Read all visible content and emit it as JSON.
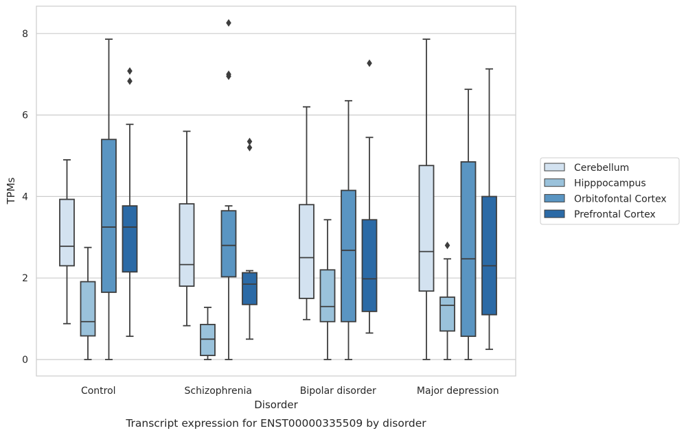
{
  "chart_data": {
    "type": "box",
    "xlabel": "Disorder",
    "ylabel": "TPMs",
    "caption": "Transcript expression for ENST00000335509 by disorder",
    "ylim": [
      -0.4,
      8.7
    ],
    "yticks": [
      0,
      2,
      4,
      6,
      8
    ],
    "grid": "horizontal",
    "legend_position": "right",
    "categories": [
      "Control",
      "Schizophrenia",
      "Bipolar disorder",
      "Major depression"
    ],
    "series": [
      {
        "name": "Cerebellum",
        "color": "#d3e2f0",
        "boxes": [
          {
            "whisker_low": 0.88,
            "q1": 2.3,
            "median": 2.78,
            "q3": 3.93,
            "whisker_high": 4.9,
            "outliers": []
          },
          {
            "whisker_low": 0.83,
            "q1": 1.8,
            "median": 2.33,
            "q3": 3.82,
            "whisker_high": 5.6,
            "outliers": []
          },
          {
            "whisker_low": 0.98,
            "q1": 1.5,
            "median": 2.5,
            "q3": 3.8,
            "whisker_high": 6.2,
            "outliers": []
          },
          {
            "whisker_low": 0.0,
            "q1": 1.68,
            "median": 2.65,
            "q3": 4.76,
            "whisker_high": 7.86,
            "outliers": []
          }
        ]
      },
      {
        "name": "Hipppocampus",
        "color": "#9ac2db",
        "boxes": [
          {
            "whisker_low": 0.0,
            "q1": 0.58,
            "median": 0.93,
            "q3": 1.91,
            "whisker_high": 2.75,
            "outliers": []
          },
          {
            "whisker_low": 0.0,
            "q1": 0.1,
            "median": 0.5,
            "q3": 0.86,
            "whisker_high": 1.28,
            "outliers": []
          },
          {
            "whisker_low": 0.0,
            "q1": 0.93,
            "median": 1.3,
            "q3": 2.2,
            "whisker_high": 3.43,
            "outliers": []
          },
          {
            "whisker_low": 0.0,
            "q1": 0.7,
            "median": 1.33,
            "q3": 1.53,
            "whisker_high": 2.47,
            "outliers": [
              2.8
            ]
          }
        ]
      },
      {
        "name": "Orbitofontal Cortex",
        "color": "#5a95c2",
        "boxes": [
          {
            "whisker_low": 0.0,
            "q1": 1.65,
            "median": 3.25,
            "q3": 5.4,
            "whisker_high": 7.86,
            "outliers": []
          },
          {
            "whisker_low": 0.0,
            "q1": 2.03,
            "median": 2.8,
            "q3": 3.65,
            "whisker_high": 3.77,
            "outliers": [
              6.95,
              7.0,
              8.26
            ]
          },
          {
            "whisker_low": 0.0,
            "q1": 0.93,
            "median": 2.68,
            "q3": 4.15,
            "whisker_high": 6.35,
            "outliers": []
          },
          {
            "whisker_low": 0.0,
            "q1": 0.57,
            "median": 2.47,
            "q3": 4.85,
            "whisker_high": 6.63,
            "outliers": []
          }
        ]
      },
      {
        "name": "Prefrontal Cortex",
        "color": "#2b6aa6",
        "boxes": [
          {
            "whisker_low": 0.57,
            "q1": 2.15,
            "median": 3.25,
            "q3": 3.77,
            "whisker_high": 5.77,
            "outliers": [
              6.83,
              7.08
            ]
          },
          {
            "whisker_low": 0.5,
            "q1": 1.35,
            "median": 1.85,
            "q3": 2.13,
            "whisker_high": 2.18,
            "outliers": [
              5.2,
              5.35
            ]
          },
          {
            "whisker_low": 0.65,
            "q1": 1.18,
            "median": 1.98,
            "q3": 3.43,
            "whisker_high": 5.45,
            "outliers": [
              7.27
            ]
          },
          {
            "whisker_low": 0.25,
            "q1": 1.1,
            "median": 2.3,
            "q3": 4.0,
            "whisker_high": 7.13,
            "outliers": []
          }
        ]
      }
    ]
  }
}
